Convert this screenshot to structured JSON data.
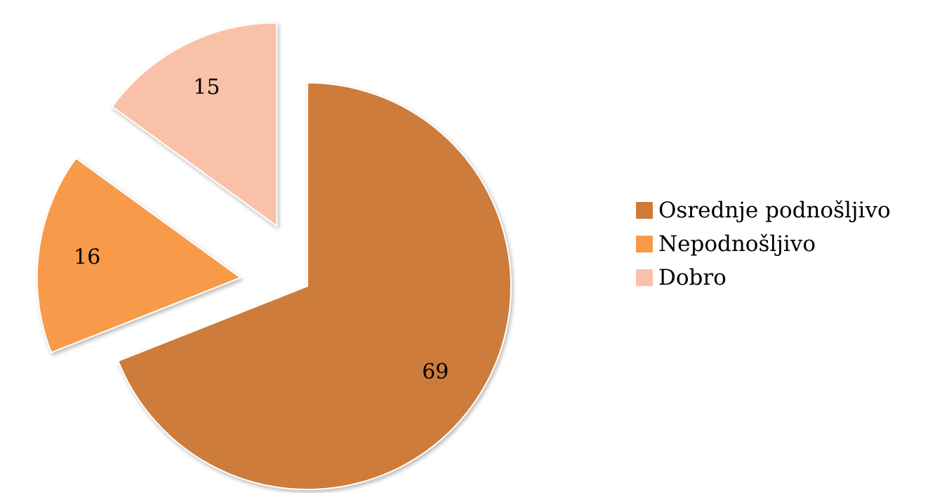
{
  "chart_data": {
    "type": "pie",
    "title": "",
    "categories": [
      "Osrednje podnošljivo",
      "Nepodnošljivo",
      "Dobro"
    ],
    "values": [
      69,
      16,
      15
    ],
    "data_labels": [
      "69",
      "16",
      "15"
    ],
    "colors": [
      "#CD7B3A",
      "#F79A4A",
      "#F9C2A8"
    ],
    "exploded": [
      false,
      true,
      true
    ],
    "start_angle_deg": 0,
    "direction": "clockwise",
    "legend_position": "right"
  }
}
